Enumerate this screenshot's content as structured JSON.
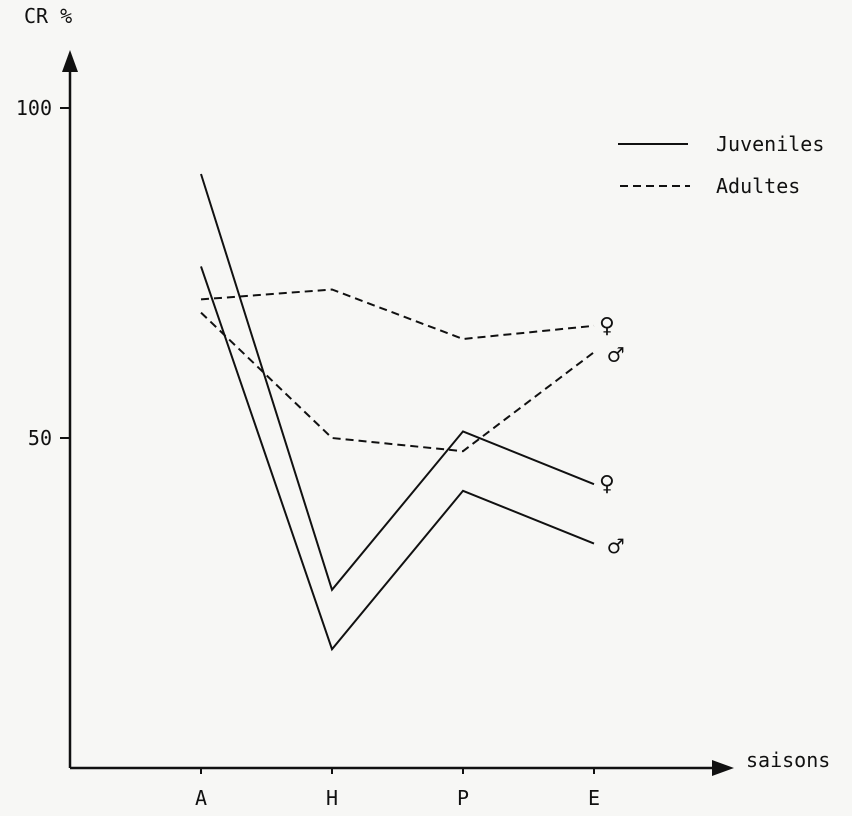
{
  "chart_data": {
    "type": "line",
    "title": "",
    "ylabel": "CR %",
    "xlabel": "saisons",
    "categories": [
      "A",
      "H",
      "P",
      "E"
    ],
    "yticks": [
      100,
      50
    ],
    "ylim": [
      0,
      105
    ],
    "grid": false,
    "legend_position": "top-right",
    "legend": [
      {
        "label": "Juveniles",
        "style": "solid"
      },
      {
        "label": "Adultes",
        "style": "dashed"
      }
    ],
    "series": [
      {
        "group": "Juveniles",
        "sex": "female",
        "style": "solid",
        "values": [
          90,
          27,
          51,
          43
        ],
        "end_marker": "♀"
      },
      {
        "group": "Juveniles",
        "sex": "male",
        "style": "solid",
        "values": [
          76,
          18,
          42,
          34
        ],
        "end_marker": "♂"
      },
      {
        "group": "Adultes",
        "sex": "female",
        "style": "dashed",
        "values": [
          71,
          72.5,
          65,
          67
        ],
        "end_marker": "♀"
      },
      {
        "group": "Adultes",
        "sex": "male",
        "style": "dashed",
        "values": [
          69,
          50,
          48,
          63
        ],
        "end_marker": "♂"
      }
    ]
  }
}
